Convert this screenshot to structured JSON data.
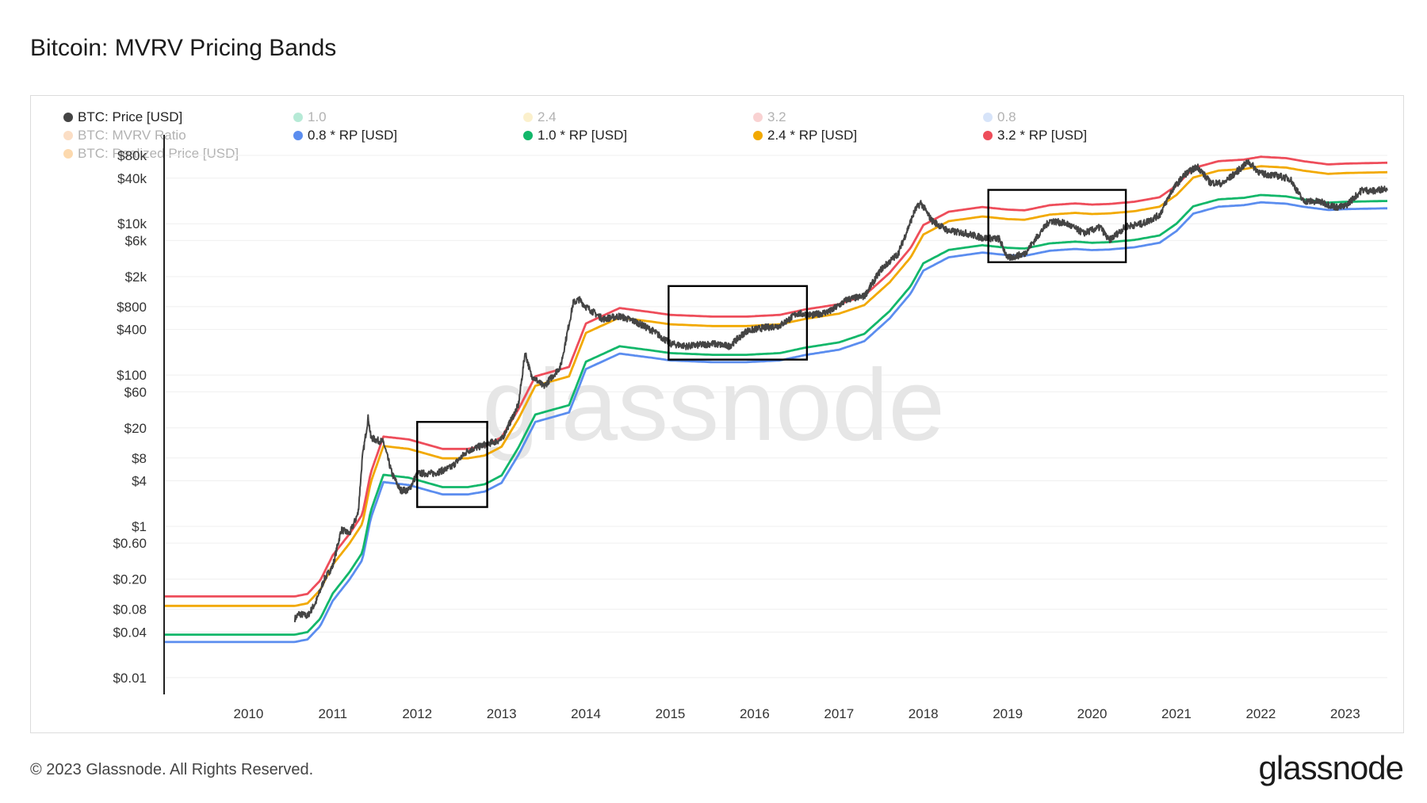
{
  "title": "Bitcoin: MVRV Pricing Bands",
  "footer": {
    "copyright": "© 2023 Glassnode. All Rights Reserved.",
    "logo": "glassnode"
  },
  "watermark": "glassnode",
  "legend": [
    {
      "label": "BTC: Price [USD]",
      "color": "#444444",
      "faded": false
    },
    {
      "label": "1.0",
      "color": "#2fc28a",
      "faded": true
    },
    {
      "label": "2.4",
      "color": "#f5d76e",
      "faded": true
    },
    {
      "label": "3.2",
      "color": "#f08080",
      "faded": true
    },
    {
      "label": "0.8",
      "color": "#8fb3f0",
      "faded": true
    },
    {
      "label": "BTC: MVRV Ratio",
      "color": "#f5a35c",
      "faded": true
    },
    {
      "label": "0.8 * RP [USD]",
      "color": "#5b8def",
      "faded": false
    },
    {
      "label": "1.0 * RP [USD]",
      "color": "#12b76a",
      "faded": false
    },
    {
      "label": "2.4 * RP [USD]",
      "color": "#f2a900",
      "faded": false
    },
    {
      "label": "3.2 * RP [USD]",
      "color": "#ee4d5a",
      "faded": false
    },
    {
      "label": "BTC: Realized Price [USD]",
      "color": "#f7931a",
      "faded": true
    }
  ],
  "chart_data": {
    "type": "line",
    "yscale": "log",
    "ylim": [
      0.006,
      150000
    ],
    "xlim": [
      2009.0,
      2023.5
    ],
    "x_ticks": [
      "2010",
      "2011",
      "2012",
      "2013",
      "2014",
      "2015",
      "2016",
      "2017",
      "2018",
      "2019",
      "2020",
      "2021",
      "2022",
      "2023"
    ],
    "y_ticks": [
      "$80k",
      "$40k",
      "$10k",
      "$6k",
      "$2k",
      "$800",
      "$400",
      "$100",
      "$60",
      "$20",
      "$8",
      "$4",
      "$1",
      "$0.60",
      "$0.20",
      "$0.08",
      "$0.04",
      "$0.01"
    ],
    "rp": {
      "x": [
        2009.0,
        2010.55,
        2010.7,
        2010.85,
        2011.0,
        2011.2,
        2011.35,
        2011.45,
        2011.6,
        2011.9,
        2012.3,
        2012.6,
        2012.8,
        2013.0,
        2013.2,
        2013.4,
        2013.8,
        2014.0,
        2014.4,
        2014.8,
        2015.0,
        2015.5,
        2015.9,
        2016.3,
        2016.6,
        2017.0,
        2017.3,
        2017.6,
        2017.85,
        2018.0,
        2018.3,
        2018.7,
        2019.0,
        2019.2,
        2019.5,
        2019.8,
        2020.0,
        2020.2,
        2020.5,
        2020.8,
        2021.0,
        2021.2,
        2021.5,
        2021.8,
        2022.0,
        2022.3,
        2022.5,
        2022.8,
        2023.0,
        2023.5
      ],
      "values": [
        0.037,
        0.037,
        0.04,
        0.06,
        0.13,
        0.25,
        0.45,
        1.6,
        4.8,
        4.4,
        3.3,
        3.3,
        3.6,
        4.7,
        11,
        30,
        40,
        150,
        240,
        210,
        195,
        185,
        185,
        195,
        230,
        270,
        350,
        700,
        1500,
        3000,
        4500,
        5200,
        4800,
        4700,
        5500,
        5800,
        5600,
        5700,
        6100,
        7000,
        10000,
        17000,
        21000,
        22000,
        24000,
        23000,
        21000,
        19000,
        19500,
        20000
      ]
    },
    "multipliers": [
      {
        "name": "0.8 * RP [USD]",
        "factor": 0.8,
        "color": "#5b8def"
      },
      {
        "name": "1.0 * RP [USD]",
        "factor": 1.0,
        "color": "#12b76a"
      },
      {
        "name": "2.4 * RP [USD]",
        "factor": 2.4,
        "color": "#f2a900"
      },
      {
        "name": "3.2 * RP [USD]",
        "factor": 3.2,
        "color": "#ee4d5a"
      }
    ],
    "price": {
      "name": "BTC: Price [USD]",
      "color": "#444444",
      "x": [
        2010.55,
        2010.6,
        2010.7,
        2010.8,
        2010.9,
        2011.0,
        2011.1,
        2011.2,
        2011.3,
        2011.35,
        2011.42,
        2011.45,
        2011.5,
        2011.6,
        2011.7,
        2011.8,
        2011.9,
        2012.0,
        2012.2,
        2012.4,
        2012.6,
        2012.8,
        2013.0,
        2013.2,
        2013.28,
        2013.35,
        2013.5,
        2013.7,
        2013.85,
        2013.92,
        2014.0,
        2014.2,
        2014.4,
        2014.6,
        2014.8,
        2015.0,
        2015.2,
        2015.5,
        2015.7,
        2015.9,
        2016.1,
        2016.3,
        2016.5,
        2016.7,
        2016.9,
        2017.1,
        2017.3,
        2017.5,
        2017.7,
        2017.9,
        2017.97,
        2018.1,
        2018.3,
        2018.5,
        2018.7,
        2018.9,
        2019.0,
        2019.2,
        2019.4,
        2019.5,
        2019.7,
        2019.9,
        2020.1,
        2020.2,
        2020.4,
        2020.6,
        2020.8,
        2020.95,
        2021.1,
        2021.25,
        2021.4,
        2021.55,
        2021.7,
        2021.85,
        2022.0,
        2022.2,
        2022.35,
        2022.5,
        2022.7,
        2022.9,
        2023.0,
        2023.2,
        2023.35,
        2023.5
      ],
      "values": [
        0.06,
        0.07,
        0.065,
        0.1,
        0.2,
        0.3,
        0.9,
        0.8,
        1.5,
        8,
        28,
        15,
        14,
        13,
        5,
        3,
        3,
        5,
        5,
        6,
        10,
        12,
        14,
        40,
        200,
        100,
        70,
        130,
        900,
        1000,
        800,
        550,
        600,
        500,
        380,
        260,
        240,
        260,
        240,
        380,
        420,
        450,
        650,
        620,
        700,
        1000,
        1100,
        2500,
        4000,
        15000,
        19000,
        11000,
        8000,
        7500,
        6500,
        6300,
        3500,
        4000,
        8000,
        11000,
        10000,
        7500,
        9000,
        6000,
        9200,
        10000,
        13000,
        28000,
        45000,
        57000,
        35000,
        34000,
        47000,
        66000,
        46000,
        43000,
        39000,
        20000,
        19500,
        16500,
        17000,
        28000,
        27000,
        30000
      ]
    },
    "highlight_boxes": [
      {
        "x0": 2012.0,
        "x1": 2012.83,
        "y0": 1.8,
        "y1": 24
      },
      {
        "x0": 2014.98,
        "x1": 2016.62,
        "y0": 160,
        "y1": 1500
      },
      {
        "x0": 2018.77,
        "x1": 2020.4,
        "y0": 3100,
        "y1": 28000
      }
    ]
  }
}
